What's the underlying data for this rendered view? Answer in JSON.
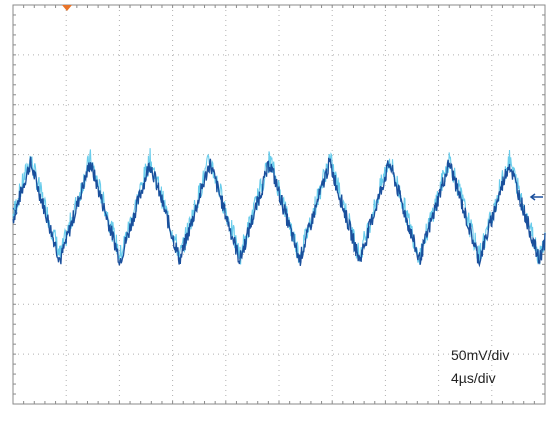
{
  "chart_data": {
    "type": "line",
    "title": "",
    "xlabel": "",
    "ylabel": "",
    "grid": true,
    "xlim": [
      0,
      40
    ],
    "ylim": [
      -200,
      200
    ],
    "x_divisions": 10,
    "y_divisions": 8,
    "scale_labels": [
      "50mV/div",
      "4µs/div"
    ],
    "waveform": {
      "shape": "triangle",
      "period": 4.5,
      "peak_times": [
        1.3,
        5.8,
        10.3,
        14.9,
        19.5,
        24.0,
        28.6,
        33.2
      ],
      "max": 42,
      "min": -56
    },
    "colors": {
      "trace": "#1a4f9c",
      "trace_secondary": "#4fc3e8",
      "grid": "#b0b0b0",
      "frame": "#8a8a8a",
      "trigger_marker": "#e8742a",
      "ground_marker": "#1a4f9c"
    }
  },
  "annotations": {
    "volts_per_div": "50mV/div",
    "time_per_div": "4µs/div"
  }
}
